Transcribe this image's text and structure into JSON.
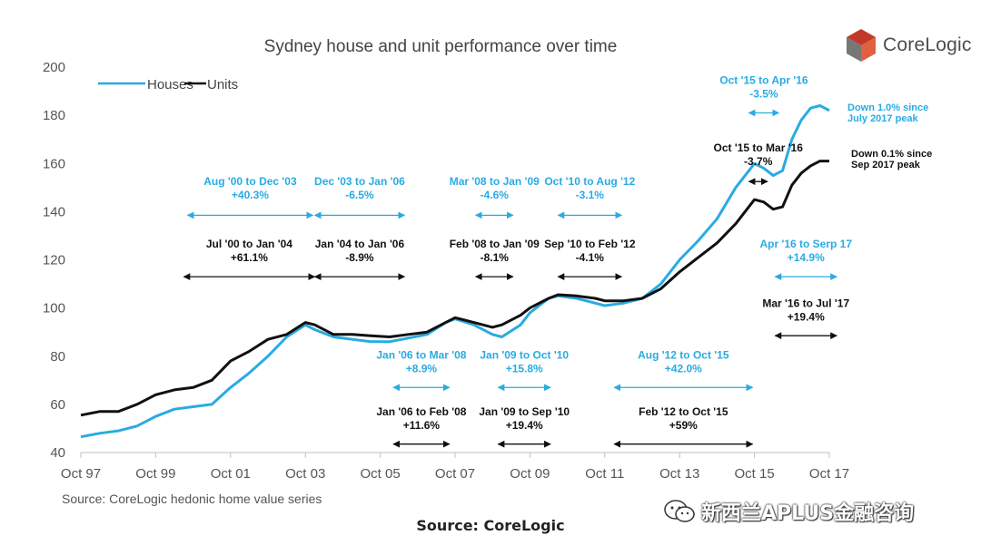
{
  "colors": {
    "houses": "#29abe2",
    "units": "#111111",
    "axis": "#bfbfbf",
    "text": "#333333",
    "logo_red": "#c0392b",
    "logo_grey": "#777777"
  },
  "chart_data": {
    "type": "line",
    "title": "Sydney house and unit performance over time",
    "ylim": [
      40,
      200
    ],
    "yticks": [
      40,
      60,
      80,
      100,
      120,
      140,
      160,
      180,
      200
    ],
    "x_range": [
      1997.75,
      2017.75
    ],
    "xticks": [
      {
        "label": "Oct 97",
        "t": 1997.75
      },
      {
        "label": "Oct 99",
        "t": 1999.75
      },
      {
        "label": "Oct 01",
        "t": 2001.75
      },
      {
        "label": "Oct 03",
        "t": 2003.75
      },
      {
        "label": "Oct 05",
        "t": 2005.75
      },
      {
        "label": "Oct 07",
        "t": 2007.75
      },
      {
        "label": "Oct 09",
        "t": 2009.75
      },
      {
        "label": "Oct 11",
        "t": 2011.75
      },
      {
        "label": "Oct 13",
        "t": 2013.75
      },
      {
        "label": "Oct 15",
        "t": 2015.75
      },
      {
        "label": "Oct 17",
        "t": 2017.75
      }
    ],
    "legend": [
      {
        "name": "Houses",
        "series": "houses"
      },
      {
        "name": "Units",
        "series": "units"
      }
    ],
    "series": [
      {
        "name": "Houses",
        "key": "houses",
        "points": [
          [
            1997.75,
            46.5
          ],
          [
            1998.25,
            48
          ],
          [
            1998.75,
            49
          ],
          [
            1999.25,
            51
          ],
          [
            1999.75,
            55
          ],
          [
            2000.25,
            58
          ],
          [
            2000.75,
            59
          ],
          [
            2001.25,
            60
          ],
          [
            2001.75,
            67
          ],
          [
            2002.25,
            73
          ],
          [
            2002.75,
            80
          ],
          [
            2003.25,
            88
          ],
          [
            2003.75,
            93
          ],
          [
            2004.0,
            91
          ],
          [
            2004.5,
            88
          ],
          [
            2005.0,
            87
          ],
          [
            2005.5,
            86
          ],
          [
            2006.0,
            86
          ],
          [
            2006.5,
            87.5
          ],
          [
            2007.0,
            89
          ],
          [
            2007.5,
            94
          ],
          [
            2007.75,
            95.5
          ],
          [
            2008.25,
            93
          ],
          [
            2008.75,
            89
          ],
          [
            2009.0,
            88
          ],
          [
            2009.5,
            93
          ],
          [
            2009.75,
            98
          ],
          [
            2010.25,
            104
          ],
          [
            2010.5,
            105
          ],
          [
            2011.0,
            104
          ],
          [
            2011.5,
            102
          ],
          [
            2011.75,
            101
          ],
          [
            2012.25,
            102
          ],
          [
            2012.75,
            104
          ],
          [
            2013.25,
            110
          ],
          [
            2013.75,
            120
          ],
          [
            2014.25,
            128
          ],
          [
            2014.75,
            137
          ],
          [
            2015.25,
            150
          ],
          [
            2015.75,
            160
          ],
          [
            2016.0,
            158
          ],
          [
            2016.25,
            155
          ],
          [
            2016.5,
            157
          ],
          [
            2016.75,
            170
          ],
          [
            2017.0,
            178
          ],
          [
            2017.25,
            183
          ],
          [
            2017.5,
            184
          ],
          [
            2017.75,
            182
          ]
        ]
      },
      {
        "name": "Units",
        "key": "units",
        "points": [
          [
            1997.75,
            55.5
          ],
          [
            1998.25,
            57
          ],
          [
            1998.75,
            57
          ],
          [
            1999.25,
            60
          ],
          [
            1999.75,
            64
          ],
          [
            2000.25,
            66
          ],
          [
            2000.75,
            67
          ],
          [
            2001.25,
            70
          ],
          [
            2001.75,
            78
          ],
          [
            2002.25,
            82
          ],
          [
            2002.75,
            87
          ],
          [
            2003.25,
            89
          ],
          [
            2003.75,
            94
          ],
          [
            2004.0,
            93
          ],
          [
            2004.5,
            89
          ],
          [
            2005.0,
            89
          ],
          [
            2005.5,
            88.5
          ],
          [
            2006.0,
            88
          ],
          [
            2006.5,
            89
          ],
          [
            2007.0,
            90
          ],
          [
            2007.5,
            94
          ],
          [
            2007.75,
            96
          ],
          [
            2008.25,
            94
          ],
          [
            2008.75,
            92
          ],
          [
            2009.0,
            93
          ],
          [
            2009.5,
            97
          ],
          [
            2009.75,
            100
          ],
          [
            2010.25,
            104
          ],
          [
            2010.5,
            105.5
          ],
          [
            2011.0,
            105
          ],
          [
            2011.5,
            104
          ],
          [
            2011.75,
            103
          ],
          [
            2012.25,
            103
          ],
          [
            2012.75,
            104
          ],
          [
            2013.25,
            108
          ],
          [
            2013.75,
            115
          ],
          [
            2014.25,
            121
          ],
          [
            2014.75,
            127
          ],
          [
            2015.25,
            135
          ],
          [
            2015.75,
            145
          ],
          [
            2016.0,
            144
          ],
          [
            2016.25,
            141
          ],
          [
            2016.5,
            142
          ],
          [
            2016.75,
            151
          ],
          [
            2017.0,
            156
          ],
          [
            2017.25,
            159
          ],
          [
            2017.5,
            161
          ],
          [
            2017.75,
            161
          ]
        ]
      }
    ],
    "annotations": [
      {
        "series": "houses",
        "line1": "Aug '00 to Dec '03",
        "line2": "+40.3%",
        "t0": 2000.6,
        "t1": 2003.95,
        "arrow_y": 138.5,
        "text_y": 151
      },
      {
        "series": "units",
        "line1": "Jul '00 to Jan '04",
        "line2": "+61.1%",
        "t0": 2000.5,
        "t1": 2004.0,
        "arrow_y": 113,
        "text_y": 125
      },
      {
        "series": "houses",
        "line1": "Dec '03 to Jan '06",
        "line2": "-6.5%",
        "t0": 2004.0,
        "t1": 2006.4,
        "arrow_y": 138.5,
        "text_y": 151
      },
      {
        "series": "units",
        "line1": "Jan '04 to Jan '06",
        "line2": "-8.9%",
        "t0": 2004.0,
        "t1": 2006.4,
        "arrow_y": 113,
        "text_y": 125
      },
      {
        "series": "houses",
        "line1": "Mar '08 to Jan '09",
        "line2": "-4.6%",
        "t0": 2008.3,
        "t1": 2009.3,
        "arrow_y": 138.5,
        "text_y": 151
      },
      {
        "series": "units",
        "line1": "Feb '08 to Jan '09",
        "line2": "-8.1%",
        "t0": 2008.3,
        "t1": 2009.3,
        "arrow_y": 113,
        "text_y": 125
      },
      {
        "series": "houses",
        "line1": "Oct '10 to Aug '12",
        "line2": "-3.1%",
        "t0": 2010.5,
        "t1": 2012.2,
        "arrow_y": 138.5,
        "text_y": 151
      },
      {
        "series": "units",
        "line1": "Sep '10 to Feb '12",
        "line2": "-4.1%",
        "t0": 2010.5,
        "t1": 2012.2,
        "arrow_y": 113,
        "text_y": 125
      },
      {
        "series": "houses",
        "line1": "Jan '06 to Mar '08",
        "line2": "+8.9%",
        "t0": 2006.1,
        "t1": 2007.6,
        "arrow_y": 67,
        "text_y": 79
      },
      {
        "series": "units",
        "line1": "Jan '06 to Feb '08",
        "line2": "+11.6%",
        "t0": 2006.1,
        "t1": 2007.6,
        "arrow_y": 43.5,
        "text_y": 55.5
      },
      {
        "series": "houses",
        "line1": "Jan '09 to Oct '10",
        "line2": "+15.8%",
        "t0": 2008.9,
        "t1": 2010.3,
        "arrow_y": 67,
        "text_y": 79
      },
      {
        "series": "units",
        "line1": "Jan '09 to Sep '10",
        "line2": "+19.4%",
        "t0": 2008.9,
        "t1": 2010.3,
        "arrow_y": 43.5,
        "text_y": 55.5
      },
      {
        "series": "houses",
        "line1": "Aug '12 to Oct '15",
        "line2": "+42.0%",
        "t0": 2012.0,
        "t1": 2015.7,
        "arrow_y": 67,
        "text_y": 79
      },
      {
        "series": "units",
        "line1": "Feb '12 to Oct '15",
        "line2": "+59%",
        "t0": 2012.0,
        "t1": 2015.7,
        "arrow_y": 43.5,
        "text_y": 55.5
      },
      {
        "series": "houses",
        "line1": "Oct '15 to Apr '16",
        "line2": "-3.5%",
        "t0": 2015.6,
        "t1": 2016.4,
        "arrow_y": 181,
        "text_y": 193
      },
      {
        "series": "units",
        "line1": "Oct '15 to Mar '16",
        "line2": "-3.7%",
        "t0": 2015.6,
        "t1": 2016.1,
        "arrow_y": 152.5,
        "text_y": 165
      },
      {
        "series": "houses",
        "line1": "Apr '16 to Serp 17",
        "line2": "+14.9%",
        "t0": 2016.3,
        "t1": 2017.95,
        "arrow_y": 113,
        "text_y": 125
      },
      {
        "series": "units",
        "line1": "Mar '16 to Jul '17",
        "line2": "+19.4%",
        "t0": 2016.3,
        "t1": 2017.95,
        "arrow_y": 88.5,
        "text_y": 100.5
      }
    ],
    "end_notes": [
      {
        "series": "houses",
        "line1": "Down 1.0% since",
        "line2": "July 2017 peak"
      },
      {
        "series": "units",
        "line1": "Down 0.1% since",
        "line2": "Sep 2017 peak"
      }
    ]
  },
  "source_note": "Source:  CoreLogic hedonic home value series",
  "caption": "Source: CoreLogic",
  "logo": {
    "name": "CoreLogic"
  },
  "watermark": {
    "text": "新西兰APLUS金融咨询"
  }
}
